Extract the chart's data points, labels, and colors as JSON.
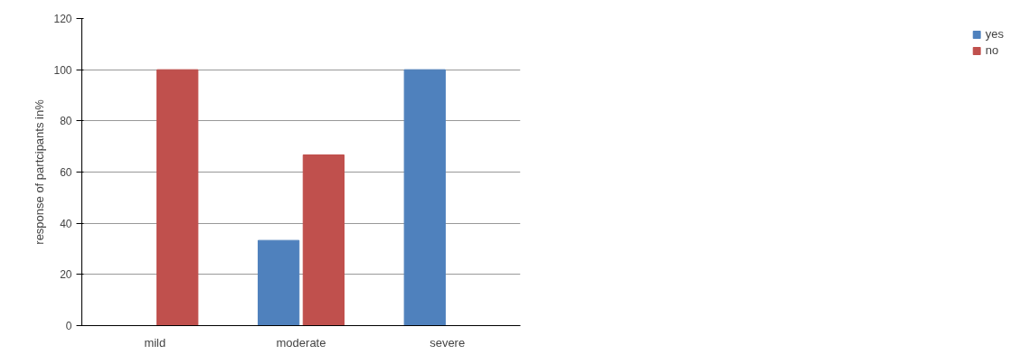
{
  "chart_data": {
    "type": "bar",
    "categories": [
      "mild",
      "moderate",
      "severe"
    ],
    "series": [
      {
        "name": "yes",
        "color": "#4f81bd",
        "values": [
          0,
          33.3,
          100
        ]
      },
      {
        "name": "no",
        "color": "#c0504d",
        "values": [
          100,
          66.7,
          0
        ]
      }
    ],
    "ylabel": "response of partcipants in%",
    "ylim": [
      0,
      120
    ],
    "yticks": [
      0,
      20,
      40,
      60,
      80,
      100,
      120
    ],
    "grid": "y",
    "legend": "right"
  }
}
